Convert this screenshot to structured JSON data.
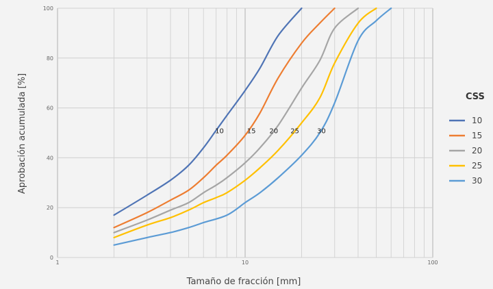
{
  "chart_data": {
    "type": "line",
    "xlabel": "Tamaño de fracción [mm]",
    "ylabel": "Aprobación acumulada [%]",
    "xscale": "log",
    "xlim": [
      1,
      100
    ],
    "ylim": [
      0,
      100
    ],
    "xticks": [
      "1",
      "10",
      "100"
    ],
    "yticks": [
      "0",
      "20",
      "40",
      "60",
      "80",
      "100"
    ],
    "grid": true,
    "legend": {
      "title": "CSS",
      "position": "right"
    },
    "series": [
      {
        "name": "10",
        "color": "#4f74b5",
        "points": [
          [
            2,
            17
          ],
          [
            3,
            25
          ],
          [
            4,
            31
          ],
          [
            5,
            37
          ],
          [
            6,
            44
          ],
          [
            7,
            51
          ],
          [
            8,
            57
          ],
          [
            10,
            67
          ],
          [
            12,
            76
          ],
          [
            15,
            89
          ],
          [
            20,
            100
          ]
        ]
      },
      {
        "name": "15",
        "color": "#ed7d31",
        "points": [
          [
            2,
            12
          ],
          [
            3,
            18
          ],
          [
            4,
            23
          ],
          [
            5,
            27
          ],
          [
            6,
            32
          ],
          [
            7,
            37
          ],
          [
            8,
            41
          ],
          [
            10,
            49
          ],
          [
            12,
            58
          ],
          [
            15,
            72
          ],
          [
            20,
            86
          ],
          [
            25,
            94
          ],
          [
            30,
            100
          ]
        ]
      },
      {
        "name": "20",
        "color": "#a5a5a5",
        "points": [
          [
            2,
            10
          ],
          [
            3,
            15
          ],
          [
            4,
            19
          ],
          [
            5,
            22
          ],
          [
            6,
            26
          ],
          [
            7,
            29
          ],
          [
            8,
            32
          ],
          [
            10,
            38
          ],
          [
            12,
            44
          ],
          [
            15,
            53
          ],
          [
            20,
            68
          ],
          [
            25,
            79
          ],
          [
            30,
            92
          ],
          [
            40,
            100
          ]
        ]
      },
      {
        "name": "25",
        "color": "#ffc000",
        "points": [
          [
            2,
            8
          ],
          [
            3,
            13
          ],
          [
            4,
            16
          ],
          [
            5,
            19
          ],
          [
            6,
            22
          ],
          [
            7,
            24
          ],
          [
            8,
            26
          ],
          [
            10,
            31
          ],
          [
            12,
            36
          ],
          [
            15,
            43
          ],
          [
            20,
            54
          ],
          [
            25,
            64
          ],
          [
            30,
            78
          ],
          [
            40,
            94
          ],
          [
            50,
            100
          ]
        ]
      },
      {
        "name": "30",
        "color": "#5b9bd5",
        "points": [
          [
            2,
            5
          ],
          [
            3,
            8
          ],
          [
            4,
            10
          ],
          [
            5,
            12
          ],
          [
            6,
            14
          ],
          [
            8,
            17
          ],
          [
            10,
            22
          ],
          [
            12,
            26
          ],
          [
            15,
            32
          ],
          [
            20,
            41
          ],
          [
            25,
            50
          ],
          [
            30,
            62
          ],
          [
            40,
            87
          ],
          [
            50,
            95
          ],
          [
            60,
            100
          ]
        ]
      }
    ],
    "annotations": [
      {
        "text": "10",
        "x": 7.3,
        "y": 51
      },
      {
        "text": "15",
        "x": 10.8,
        "y": 51
      },
      {
        "text": "20",
        "x": 14.2,
        "y": 51
      },
      {
        "text": "25",
        "x": 18.4,
        "y": 51
      },
      {
        "text": "30",
        "x": 25.5,
        "y": 51
      }
    ]
  }
}
